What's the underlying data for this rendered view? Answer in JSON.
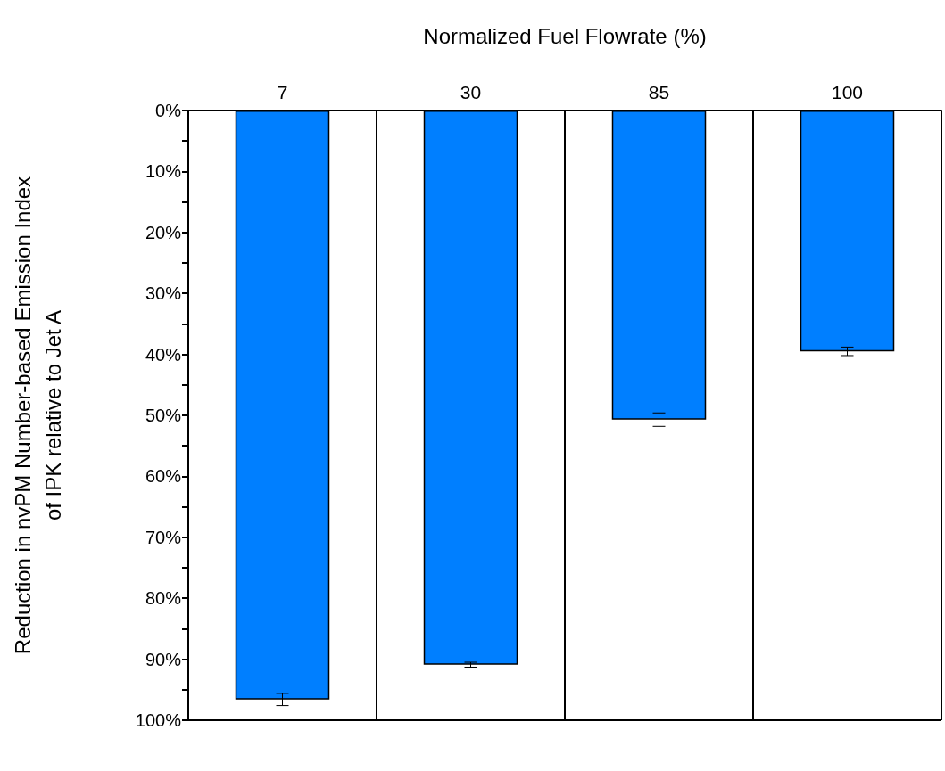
{
  "chart_data": {
    "type": "bar",
    "xlabel": "Normalized Fuel Flowrate (%)",
    "ylabel": "Reduction in nvPM Number-based Emission Index\nof IPK relative to Jet A",
    "categories": [
      "7",
      "30",
      "85",
      "100"
    ],
    "series": [
      {
        "color": "#007fff",
        "values": [
          96.6,
          90.9,
          50.7,
          39.5
        ],
        "errors": [
          1.0,
          0.4,
          1.1,
          0.7
        ]
      }
    ],
    "ylim": [
      100,
      0
    ],
    "yticks": [
      {
        "value": 0,
        "label": "0%"
      },
      {
        "value": 5,
        "label": null
      },
      {
        "value": 10,
        "label": "10%"
      },
      {
        "value": 15,
        "label": null
      },
      {
        "value": 20,
        "label": "20%"
      },
      {
        "value": 25,
        "label": null
      },
      {
        "value": 30,
        "label": "30%"
      },
      {
        "value": 35,
        "label": null
      },
      {
        "value": 40,
        "label": "40%"
      },
      {
        "value": 45,
        "label": null
      },
      {
        "value": 50,
        "label": "50%"
      },
      {
        "value": 55,
        "label": null
      },
      {
        "value": 60,
        "label": "60%"
      },
      {
        "value": 65,
        "label": null
      },
      {
        "value": 70,
        "label": "70%"
      },
      {
        "value": 75,
        "label": null
      },
      {
        "value": 80,
        "label": "80%"
      },
      {
        "value": 85,
        "label": null
      },
      {
        "value": 90,
        "label": "90%"
      },
      {
        "value": 95,
        "label": null
      },
      {
        "value": 100,
        "label": "100%"
      }
    ],
    "grid": "x"
  }
}
